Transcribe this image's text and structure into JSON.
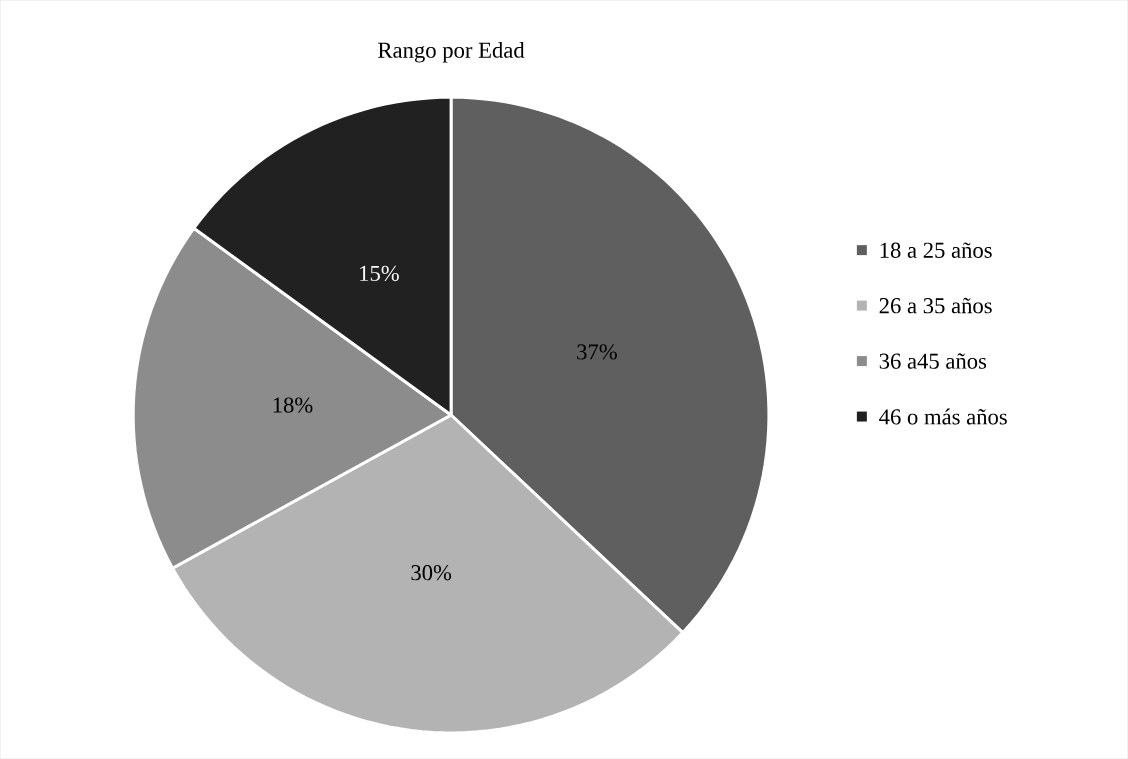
{
  "chart_data": {
    "type": "pie",
    "title": "Rango por Edad",
    "categories": [
      "18 a 25 años",
      "26 a 35 años",
      "36 a45 años",
      "46 o más años"
    ],
    "values": [
      37,
      30,
      18,
      15
    ],
    "colors": [
      "#5f5f5f",
      "#b3b3b3",
      "#8c8c8c",
      "#212121"
    ],
    "value_labels": [
      "37%",
      "30%",
      "18%",
      "15%"
    ],
    "legend": "right"
  }
}
